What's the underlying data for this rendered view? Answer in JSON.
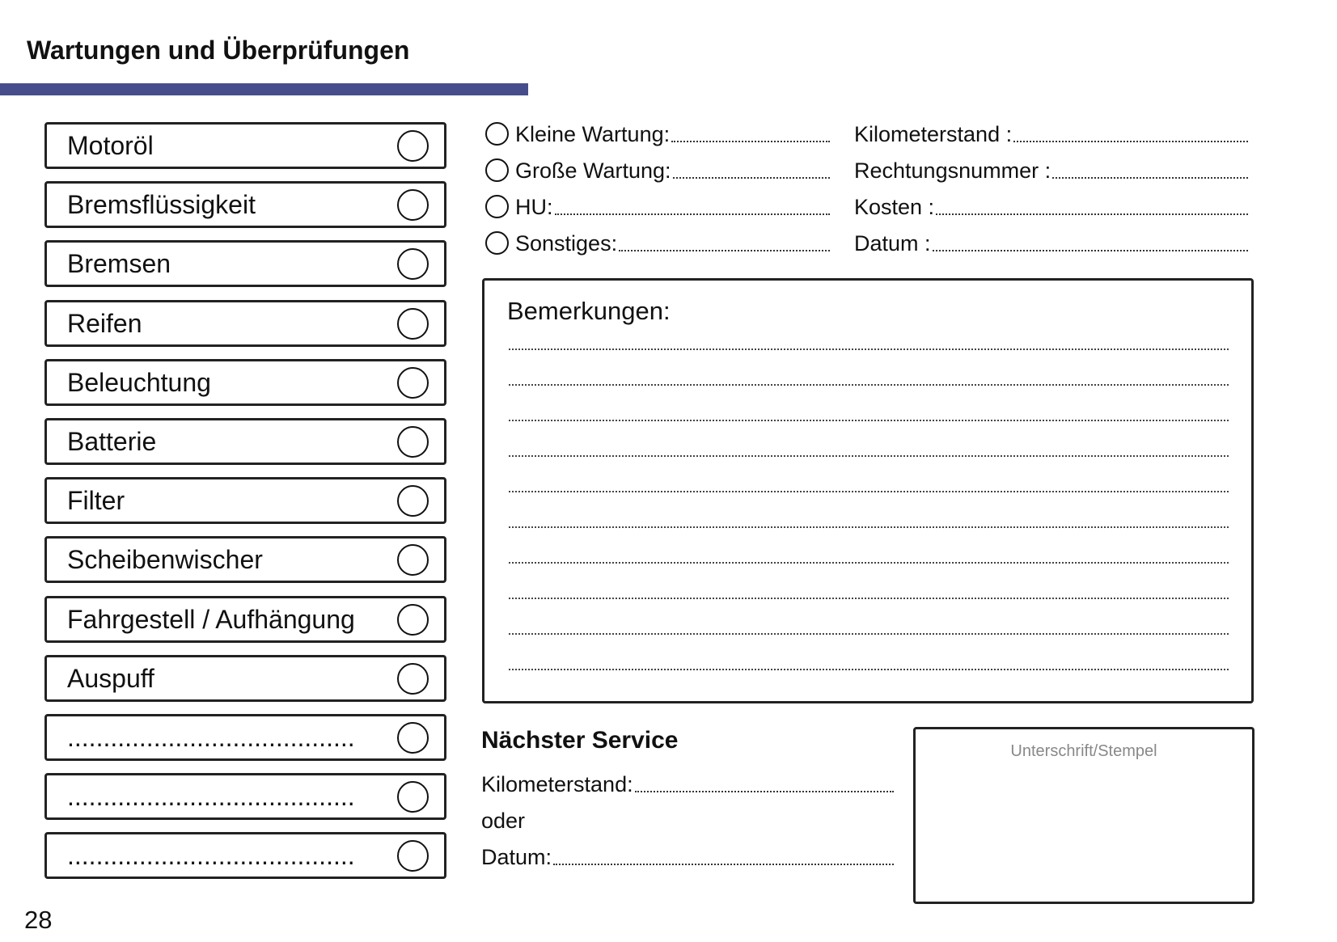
{
  "header": {
    "title": "Wartungen und Überprüfungen",
    "accent_color": "#474d8c"
  },
  "checklist": [
    {
      "label": "Motoröl"
    },
    {
      "label": "Bremsflüssigkeit"
    },
    {
      "label": "Bremsen"
    },
    {
      "label": "Reifen"
    },
    {
      "label": "Beleuchtung"
    },
    {
      "label": "Batterie"
    },
    {
      "label": "Filter"
    },
    {
      "label": "Scheibenwischer"
    },
    {
      "label": "Fahrgestell / Aufhängung"
    },
    {
      "label": "Auspuff"
    },
    {
      "label": "........................................"
    },
    {
      "label": "........................................"
    },
    {
      "label": "........................................"
    }
  ],
  "service_type": [
    {
      "label": "Kleine Wartung:"
    },
    {
      "label": "Große Wartung:"
    },
    {
      "label": "HU:"
    },
    {
      "label": "Sonstiges:"
    }
  ],
  "details": [
    {
      "label": "Kilometerstand :"
    },
    {
      "label": "Rechtungsnummer :"
    },
    {
      "label": "Kosten :"
    },
    {
      "label": "Datum :"
    }
  ],
  "remarks": {
    "title": "Bemerkungen:"
  },
  "next_service": {
    "title": "Nächster Service",
    "mileage_label": "Kilometerstand:",
    "or_label": "oder",
    "date_label": "Datum:"
  },
  "signature": {
    "label": "Unterschrift/Stempel"
  },
  "page_number": "28"
}
